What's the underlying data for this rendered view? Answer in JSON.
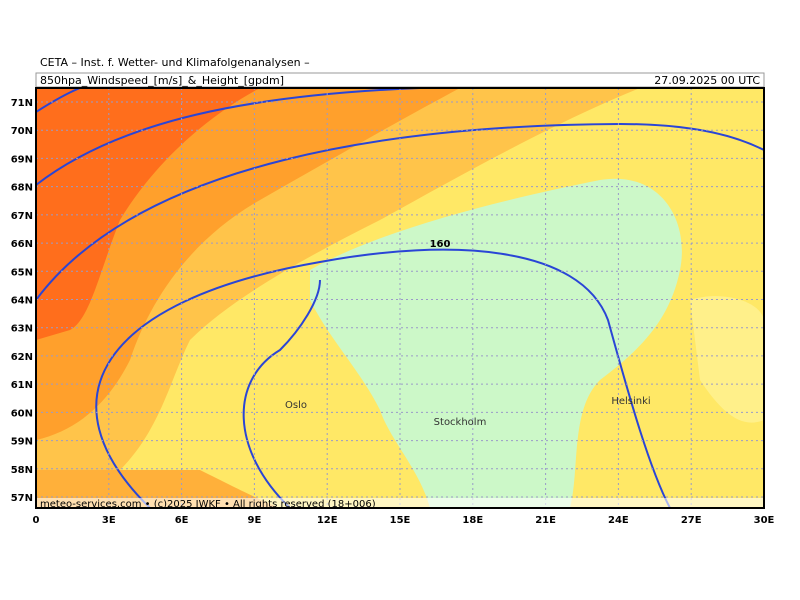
{
  "header": {
    "title": "CETA – Inst. f. Wetter- und Klimafolgenanalysen –",
    "subtitle": "850hpa_Windspeed_[m/s]_&_Height_[gpdm]",
    "datetime": "27.09.2025 00 UTC"
  },
  "axes": {
    "lat_labels": [
      "71N",
      "70N",
      "69N",
      "68N",
      "67N",
      "66N",
      "65N",
      "64N",
      "63N",
      "62N",
      "61N",
      "60N",
      "59N",
      "58N",
      "57N"
    ],
    "lon_labels": [
      "0",
      "3E",
      "6E",
      "9E",
      "12E",
      "15E",
      "18E",
      "21E",
      "24E",
      "27E",
      "30E"
    ]
  },
  "map": {
    "cities": [
      "Oslo",
      "Stockholm",
      "Helsinki"
    ],
    "contour_label": "160"
  },
  "footer": {
    "credit": "meteo-services.com • (c)2025 IWKF • All rights reserved (18+006)"
  }
}
